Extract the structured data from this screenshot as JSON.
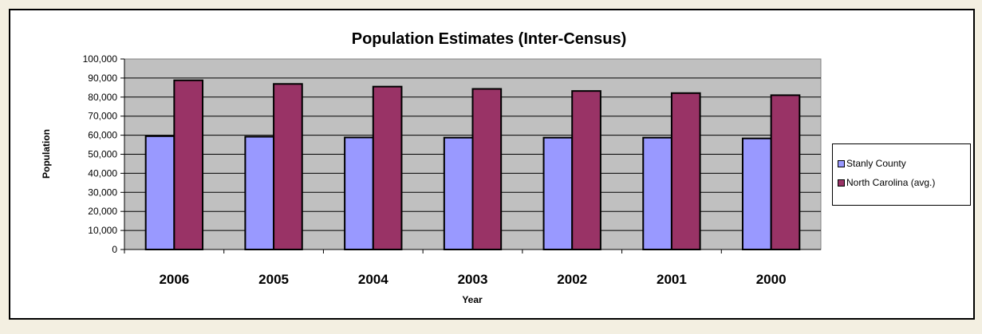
{
  "chart_data": {
    "type": "bar",
    "title": "Population Estimates (Inter-Census)",
    "xlabel": "Year",
    "ylabel": "Population",
    "categories": [
      "2006",
      "2005",
      "2004",
      "2003",
      "2002",
      "2001",
      "2000"
    ],
    "series": [
      {
        "name": "Stanly County",
        "color": "#9999ff",
        "values": [
          59500,
          59200,
          58800,
          58700,
          58700,
          58700,
          58300
        ]
      },
      {
        "name": "North Carolina (avg.)",
        "color": "#993366",
        "values": [
          88800,
          86900,
          85500,
          84300,
          83200,
          82100,
          81000
        ]
      }
    ],
    "ylim": [
      0,
      100000
    ],
    "yticks": [
      "0",
      "10,000",
      "20,000",
      "30,000",
      "40,000",
      "50,000",
      "60,000",
      "70,000",
      "80,000",
      "90,000",
      "100,000"
    ],
    "grid": true,
    "legend_position": "right",
    "plot_background": "#c0c0c0"
  }
}
